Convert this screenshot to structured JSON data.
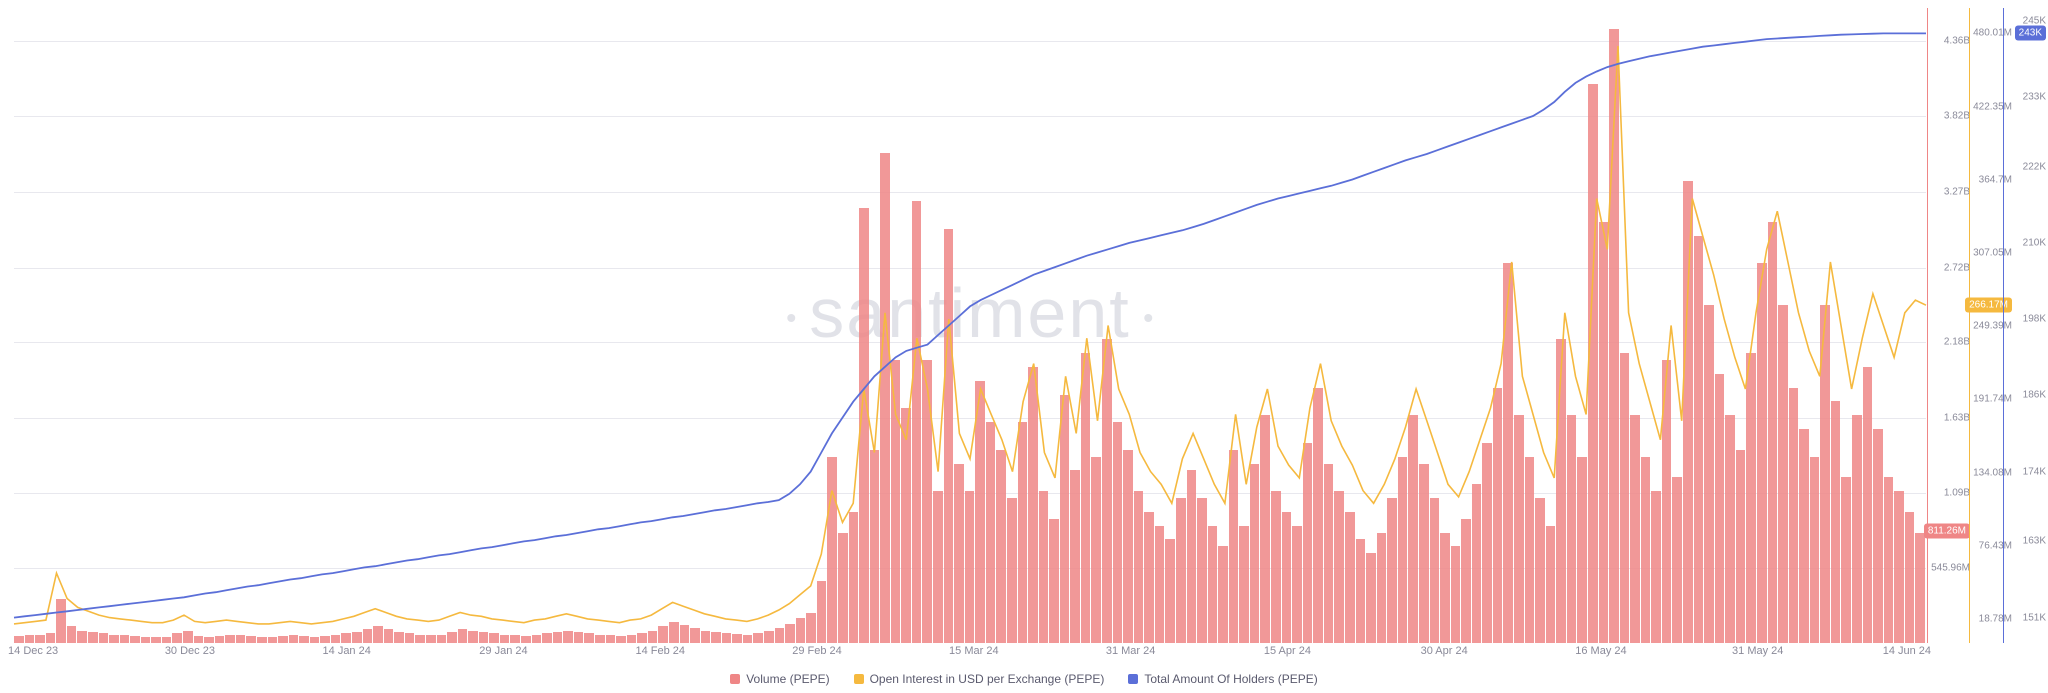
{
  "watermark": "santiment",
  "legend": {
    "volume": {
      "label": "Volume (PEPE)",
      "color": "#ef8686"
    },
    "oi": {
      "label": "Open Interest in USD per Exchange (PEPE)",
      "color": "#f5b93f"
    },
    "holders": {
      "label": "Total Amount Of Holders (PEPE)",
      "color": "#5b6fd8"
    }
  },
  "chart": {
    "background_color": "#ffffff",
    "grid_color": "#e8e8ee",
    "x_axis": {
      "ticks": [
        "14 Dec 23",
        "30 Dec 23",
        "14 Jan 24",
        "29 Jan 24",
        "14 Feb 24",
        "29 Feb 24",
        "15 Mar 24",
        "31 Mar 24",
        "15 Apr 24",
        "30 Apr 24",
        "16 May 24",
        "31 May 24",
        "14 Jun 24"
      ],
      "tick_positions_pct": [
        1,
        9.2,
        17.4,
        25.6,
        33.8,
        42,
        50.2,
        58.4,
        66.6,
        74.8,
        83,
        91.2,
        99
      ]
    },
    "axes": {
      "volume": {
        "color": "#ef8686",
        "ylim": [
          0,
          4600000000.0
        ],
        "ticks": [
          "4.36B",
          "3.82B",
          "3.27B",
          "2.72B",
          "2.18B",
          "1.63B",
          "1.09B",
          "545.96M"
        ],
        "tick_values": [
          4360000000.0,
          3820000000.0,
          3270000000.0,
          2720000000.0,
          2180000000.0,
          1630000000.0,
          1090000000.0,
          545960000.0
        ],
        "badge": {
          "text": "811.26M",
          "value": 811260000.0,
          "bg": "#ef8686"
        }
      },
      "oi": {
        "color": "#f5b93f",
        "ylim": [
          0,
          500000000.0
        ],
        "ticks": [
          "480.01M",
          "422.35M",
          "364.7M",
          "307.05M",
          "249.39M",
          "191.74M",
          "134.08M",
          "76.43M",
          "18.78M"
        ],
        "tick_values": [
          480010000.0,
          422350000.0,
          364700000.0,
          307050000.0,
          249390000.0,
          191740000.0,
          134080000.0,
          76430000.0,
          18780000.0
        ],
        "badge": {
          "text": "266.17M",
          "value": 266170000.0,
          "bg": "#f5b93f"
        }
      },
      "holders": {
        "color": "#5b6fd8",
        "ylim": [
          147000,
          247000
        ],
        "ticks": [
          "245K",
          "233K",
          "222K",
          "210K",
          "198K",
          "186K",
          "174K",
          "163K",
          "151K"
        ],
        "tick_values": [
          245000,
          233000,
          222000,
          210000,
          198000,
          186000,
          174000,
          163000,
          151000
        ],
        "badge": {
          "text": "243K",
          "value": 243000,
          "bg": "#5b6fd8"
        }
      }
    },
    "bar_color": "rgba(239,134,134,0.85)",
    "line_styles": {
      "oi": {
        "color": "#f5b93f",
        "width": 1.6
      },
      "holders": {
        "color": "#5b6fd8",
        "width": 1.8
      }
    },
    "series": {
      "volume": [
        50,
        60,
        55,
        70,
        320,
        120,
        90,
        80,
        70,
        60,
        55,
        50,
        45,
        40,
        45,
        70,
        90,
        50,
        45,
        50,
        60,
        55,
        50,
        45,
        40,
        50,
        55,
        50,
        45,
        50,
        60,
        70,
        80,
        100,
        120,
        100,
        80,
        70,
        60,
        55,
        60,
        80,
        100,
        90,
        80,
        70,
        60,
        55,
        50,
        60,
        70,
        80,
        90,
        80,
        70,
        60,
        55,
        50,
        60,
        70,
        90,
        120,
        150,
        130,
        110,
        90,
        80,
        70,
        65,
        60,
        70,
        90,
        110,
        140,
        180,
        220,
        450,
        1350,
        800,
        950,
        3150,
        1400,
        3550,
        2050,
        1700,
        3200,
        2050,
        1100,
        3000,
        1300,
        1100,
        1900,
        1600,
        1400,
        1050,
        1600,
        2000,
        1100,
        900,
        1800,
        1250,
        2100,
        1350,
        2200,
        1600,
        1400,
        1100,
        950,
        850,
        750,
        1050,
        1250,
        1050,
        850,
        700,
        1400,
        850,
        1300,
        1650,
        1100,
        950,
        850,
        1450,
        1850,
        1300,
        1100,
        950,
        750,
        650,
        800,
        1050,
        1350,
        1650,
        1300,
        1050,
        800,
        700,
        900,
        1150,
        1450,
        1850,
        2750,
        1650,
        1350,
        1050,
        850,
        2200,
        1650,
        1350,
        4050,
        3050,
        4450,
        2100,
        1650,
        1350,
        1100,
        2050,
        1200,
        3350,
        2950,
        2450,
        1950,
        1650,
        1400,
        2100,
        2750,
        3050,
        2450,
        1850,
        1550,
        1350,
        2450,
        1750,
        1200,
        1650,
        2000,
        1550,
        1200,
        1100,
        950,
        800
      ],
      "_volume_scale": 1000000.0,
      "oi": [
        15,
        16,
        17,
        18,
        55,
        35,
        28,
        25,
        22,
        20,
        19,
        18,
        17,
        16,
        16,
        18,
        22,
        17,
        16,
        17,
        18,
        17,
        16,
        15,
        15,
        16,
        17,
        16,
        15,
        16,
        17,
        19,
        21,
        24,
        27,
        24,
        21,
        19,
        18,
        17,
        18,
        21,
        24,
        22,
        21,
        19,
        18,
        17,
        16,
        18,
        19,
        21,
        23,
        21,
        19,
        18,
        17,
        16,
        18,
        19,
        22,
        27,
        32,
        29,
        26,
        23,
        21,
        19,
        18,
        17,
        19,
        22,
        26,
        31,
        38,
        45,
        70,
        120,
        95,
        110,
        200,
        150,
        260,
        180,
        160,
        240,
        200,
        135,
        255,
        165,
        145,
        200,
        180,
        160,
        135,
        190,
        220,
        150,
        130,
        210,
        165,
        240,
        175,
        250,
        200,
        180,
        150,
        135,
        125,
        110,
        145,
        165,
        145,
        125,
        110,
        180,
        125,
        170,
        200,
        155,
        140,
        130,
        185,
        220,
        175,
        155,
        140,
        120,
        110,
        125,
        145,
        170,
        200,
        175,
        150,
        125,
        115,
        135,
        160,
        185,
        220,
        300,
        210,
        180,
        150,
        130,
        260,
        210,
        180,
        350,
        310,
        470,
        260,
        220,
        190,
        160,
        250,
        175,
        350,
        320,
        290,
        255,
        225,
        200,
        260,
        310,
        340,
        300,
        260,
        230,
        210,
        300,
        250,
        200,
        240,
        275,
        250,
        225,
        260,
        270,
        266
      ],
      "_oi_scale": 1000000.0,
      "holders": [
        151,
        151.2,
        151.4,
        151.6,
        151.8,
        152,
        152.2,
        152.4,
        152.6,
        152.8,
        153,
        153.2,
        153.4,
        153.6,
        153.8,
        154,
        154.2,
        154.5,
        154.8,
        155,
        155.3,
        155.6,
        155.9,
        156.1,
        156.4,
        156.7,
        157,
        157.2,
        157.5,
        157.8,
        158,
        158.3,
        158.6,
        158.9,
        159.1,
        159.4,
        159.7,
        160,
        160.2,
        160.5,
        160.8,
        161,
        161.3,
        161.6,
        161.9,
        162.1,
        162.4,
        162.7,
        163,
        163.2,
        163.5,
        163.8,
        164,
        164.3,
        164.6,
        164.9,
        165.1,
        165.4,
        165.7,
        166,
        166.2,
        166.5,
        166.8,
        167,
        167.3,
        167.6,
        167.9,
        168.1,
        168.4,
        168.7,
        169,
        169.2,
        169.5,
        170.5,
        172,
        174,
        177,
        180,
        182.5,
        185,
        187,
        189,
        190.5,
        192,
        193,
        193.5,
        194,
        195.5,
        197,
        198.5,
        200,
        201,
        201.8,
        202.6,
        203.4,
        204.2,
        205,
        205.6,
        206.2,
        206.8,
        207.4,
        208,
        208.5,
        209,
        209.5,
        210,
        210.4,
        210.8,
        211.2,
        211.6,
        212,
        212.5,
        213,
        213.6,
        214.2,
        214.8,
        215.4,
        216,
        216.5,
        217,
        217.4,
        217.8,
        218.2,
        218.6,
        219,
        219.5,
        220,
        220.6,
        221.2,
        221.8,
        222.4,
        223,
        223.5,
        224,
        224.6,
        225.2,
        225.8,
        226.4,
        227,
        227.6,
        228.2,
        228.8,
        229.4,
        230,
        231,
        232.2,
        233.8,
        235.2,
        236.2,
        237,
        237.7,
        238.2,
        238.6,
        239,
        239.4,
        239.7,
        240,
        240.3,
        240.6,
        240.9,
        241.1,
        241.3,
        241.5,
        241.7,
        241.9,
        242.1,
        242.2,
        242.3,
        242.4,
        242.5,
        242.6,
        242.7,
        242.8,
        242.85,
        242.9,
        242.95,
        243,
        243,
        243,
        243,
        243
      ],
      "_holders_scale": 1000
    }
  }
}
